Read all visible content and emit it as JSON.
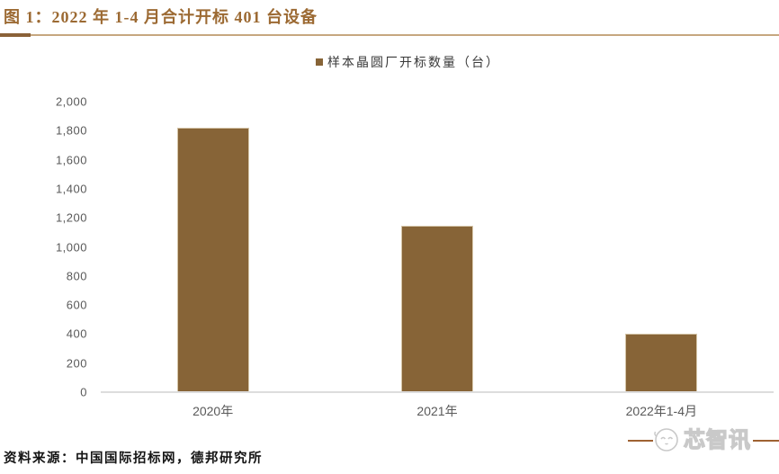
{
  "figure": {
    "title": "图 1：2022 年 1-4 月合计开标 401 台设备"
  },
  "chart_data": {
    "type": "bar",
    "title": "2022 年 1-4 月合计开标 401 台设备",
    "legend": "样本晶圆厂开标数量（台）",
    "legend_position": "top-center",
    "categories": [
      "2020年",
      "2021年",
      "2022年1-4月"
    ],
    "values": [
      1820,
      1145,
      401
    ],
    "xlabel": "",
    "ylabel": "",
    "ylim": [
      0,
      2000
    ],
    "yticks": [
      0,
      200,
      400,
      600,
      800,
      1000,
      1200,
      1400,
      1600,
      1800,
      2000
    ],
    "grid": false,
    "bar_color": "#876437"
  },
  "source": {
    "text": "资料来源：中国国际招标网，德邦研究所"
  },
  "watermark": {
    "text": "芯智讯"
  },
  "colors": {
    "title_brown": "#9C6A33",
    "bar_brown": "#876437",
    "divider_dark": "#8A6138",
    "divider_light": "#C6A77F",
    "axis_text_gray": "#595959",
    "baseline_gray": "#DDDDDD",
    "watermark_gray": "#C9C9C9",
    "watermark_line_brown": "#9F6233"
  }
}
